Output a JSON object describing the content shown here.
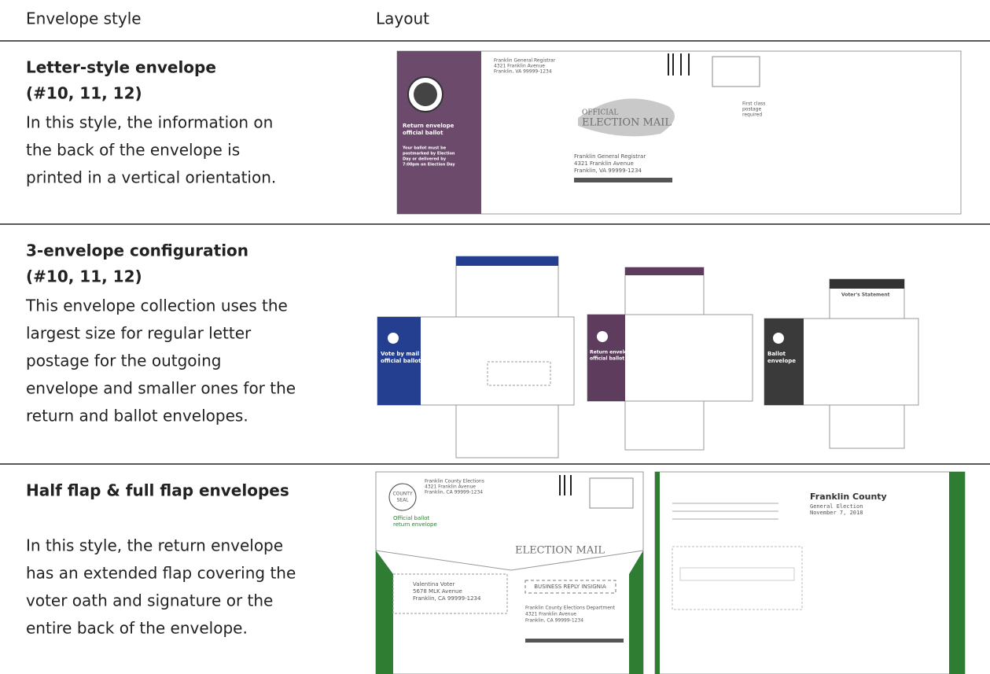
{
  "table": {
    "header": [
      "Envelope style",
      "Layout"
    ],
    "rows": [
      {
        "title": [
          "Letter-style envelope",
          "(#10, 11, 12)"
        ],
        "body": [
          "In this style, the information on",
          "the back of the envelope is",
          "printed in a vertical orientation."
        ],
        "image": {
          "sender": [
            "Franklin General Registrar",
            "4321 Franklin Avenue",
            "Franklin, VA 99999-1234"
          ],
          "panel": [
            "Return envelope",
            "official ballot"
          ],
          "panel_note": [
            "Your ballot must be",
            "postmarked by Election",
            "Day or delivered by",
            "7:00pm on Election Day"
          ],
          "mail_mark": [
            "OFFICIAL",
            "ELECTION MAIL"
          ],
          "postage": [
            "First class",
            "postage",
            "required"
          ],
          "recipient": [
            "Franklin General Registrar",
            "4321 Franklin Avenue",
            "Franklin, VA 99999-1234"
          ]
        }
      },
      {
        "title": [
          "3-envelope configuration",
          "(#10, 11, 12)"
        ],
        "body": [
          "This envelope collection uses the",
          "largest size for regular letter",
          "postage for the outgoing",
          "envelope and smaller ones for the",
          "return and ballot envelopes."
        ],
        "image": {
          "outgoing": [
            "Vote by mail",
            "official ballot"
          ],
          "return": [
            "Return envelope",
            "official ballot"
          ],
          "ballot": [
            "Ballot",
            "envelope"
          ],
          "statement": "Voter's Statement"
        }
      },
      {
        "title": [
          "Half flap & full flap envelopes"
        ],
        "body": [
          "In this style, the return envelope",
          "has an extended flap covering the",
          "voter oath and signature or the",
          "entire back of the envelope."
        ],
        "image": {
          "seal": [
            "COUNTY",
            "SEAL"
          ],
          "sender": [
            "Franklin County Elections",
            "4321 Franklin Avenue",
            "Franklin, CA 99999-1234"
          ],
          "label": [
            "Official ballot",
            "return envelope"
          ],
          "voter": [
            "Valentina Voter",
            "5678 MLK Avenue",
            "Franklin, CA 99999-1234"
          ],
          "insignia": "BUSINESS REPLY INSIGNIA",
          "recipient": [
            "Franklin County Elections Department",
            "4321 Franklin Avenue",
            "Franklin, CA 99999-1234"
          ],
          "county": "Franklin County",
          "election": [
            "General Election",
            "November 7, 2018"
          ]
        }
      }
    ]
  }
}
